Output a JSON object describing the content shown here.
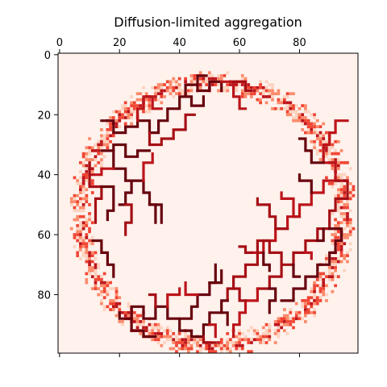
{
  "chart_data": {
    "type": "heatmap",
    "title": "Diffusion-limited aggregation",
    "xlabel": "",
    "ylabel": "",
    "grid_size": 100,
    "xlim": [
      0,
      99
    ],
    "ylim": [
      99,
      0
    ],
    "x_ticks": [
      0,
      20,
      40,
      60,
      80
    ],
    "y_ticks": [
      0,
      20,
      40,
      60,
      80
    ],
    "x_tick_labels": [
      "0",
      "20",
      "40",
      "60",
      "80"
    ],
    "y_tick_labels": [
      "0",
      "20",
      "40",
      "60",
      "80"
    ],
    "x_ticks_position": "top",
    "bottom_ticks_unlabeled": true,
    "colormap": "Reds",
    "background_color": "#fff1ec",
    "color_stops": [
      "#fff5f0",
      "#fdd2bf",
      "#fc8a6a",
      "#f14432",
      "#bc141a",
      "#67000d"
    ],
    "description_of_values": "walker visit density / aggregate mass",
    "ring": {
      "center": [
        51,
        53
      ],
      "radius": 44
    },
    "aggregate_paths": [
      [
        [
          14,
          22
        ],
        [
          18,
          22
        ],
        [
          18,
          26
        ],
        [
          22,
          26
        ],
        [
          22,
          24
        ],
        [
          26,
          24
        ],
        [
          26,
          22
        ],
        [
          30,
          22
        ],
        [
          30,
          26
        ],
        [
          33,
          26
        ],
        [
          33,
          22
        ],
        [
          36,
          22
        ],
        [
          36,
          18
        ],
        [
          40,
          18
        ],
        [
          40,
          14
        ],
        [
          42,
          14
        ],
        [
          42,
          10
        ],
        [
          46,
          10
        ],
        [
          46,
          12
        ],
        [
          50,
          12
        ],
        [
          50,
          9
        ],
        [
          54,
          9
        ],
        [
          54,
          12
        ]
      ],
      [
        [
          26,
          22
        ],
        [
          26,
          18
        ],
        [
          28,
          18
        ],
        [
          28,
          14
        ],
        [
          31,
          14
        ],
        [
          31,
          18
        ],
        [
          34,
          18
        ]
      ],
      [
        [
          30,
          26
        ],
        [
          30,
          30
        ],
        [
          34,
          30
        ],
        [
          34,
          28
        ],
        [
          38,
          28
        ],
        [
          38,
          25
        ],
        [
          42,
          25
        ],
        [
          42,
          20
        ],
        [
          45,
          20
        ]
      ],
      [
        [
          42,
          14
        ],
        [
          44,
          14
        ],
        [
          44,
          17
        ],
        [
          48,
          17
        ],
        [
          48,
          14
        ]
      ],
      [
        [
          46,
          10
        ],
        [
          46,
          7
        ],
        [
          49,
          7
        ]
      ],
      [
        [
          54,
          9
        ],
        [
          58,
          9
        ],
        [
          58,
          14
        ],
        [
          60,
          14
        ],
        [
          60,
          18
        ],
        [
          62,
          18
        ]
      ],
      [
        [
          58,
          9
        ],
        [
          62,
          9
        ],
        [
          62,
          12
        ],
        [
          64,
          12
        ]
      ],
      [
        [
          14,
          32
        ],
        [
          18,
          32
        ],
        [
          18,
          30
        ],
        [
          22,
          30
        ],
        [
          22,
          34
        ],
        [
          26,
          34
        ],
        [
          26,
          32
        ],
        [
          30,
          32
        ]
      ],
      [
        [
          18,
          32
        ],
        [
          18,
          38
        ],
        [
          22,
          38
        ],
        [
          22,
          42
        ],
        [
          24,
          42
        ],
        [
          24,
          46
        ],
        [
          22,
          46
        ],
        [
          22,
          50
        ],
        [
          20,
          50
        ]
      ],
      [
        [
          10,
          40
        ],
        [
          14,
          40
        ],
        [
          14,
          38
        ],
        [
          18,
          38
        ]
      ],
      [
        [
          10,
          36
        ],
        [
          10,
          44
        ],
        [
          14,
          44
        ],
        [
          14,
          48
        ],
        [
          12,
          48
        ],
        [
          12,
          56
        ]
      ],
      [
        [
          14,
          44
        ],
        [
          18,
          44
        ],
        [
          18,
          52
        ],
        [
          16,
          52
        ],
        [
          16,
          55
        ]
      ],
      [
        [
          24,
          42
        ],
        [
          28,
          42
        ],
        [
          28,
          46
        ],
        [
          30,
          46
        ],
        [
          30,
          50
        ],
        [
          32,
          50
        ],
        [
          32,
          56
        ]
      ],
      [
        [
          28,
          42
        ],
        [
          28,
          36
        ],
        [
          31,
          36
        ],
        [
          31,
          33
        ]
      ],
      [
        [
          22,
          50
        ],
        [
          24,
          50
        ],
        [
          24,
          56
        ],
        [
          22,
          56
        ],
        [
          22,
          60
        ]
      ],
      [
        [
          30,
          50
        ],
        [
          34,
          50
        ],
        [
          34,
          56
        ]
      ],
      [
        [
          11,
          62
        ],
        [
          14,
          62
        ],
        [
          14,
          66
        ],
        [
          16,
          66
        ],
        [
          16,
          70
        ],
        [
          18,
          70
        ],
        [
          18,
          74
        ]
      ],
      [
        [
          96,
          22
        ],
        [
          92,
          22
        ],
        [
          92,
          26
        ],
        [
          90,
          26
        ],
        [
          90,
          30
        ],
        [
          88,
          30
        ],
        [
          88,
          36
        ],
        [
          92,
          36
        ],
        [
          92,
          42
        ],
        [
          88,
          42
        ],
        [
          88,
          46
        ],
        [
          84,
          46
        ],
        [
          84,
          50
        ],
        [
          80,
          50
        ],
        [
          80,
          54
        ],
        [
          76,
          54
        ],
        [
          76,
          58
        ],
        [
          72,
          58
        ],
        [
          72,
          62
        ],
        [
          68,
          62
        ],
        [
          68,
          66
        ],
        [
          64,
          66
        ]
      ],
      [
        [
          92,
          42
        ],
        [
          96,
          42
        ],
        [
          96,
          48
        ],
        [
          92,
          48
        ],
        [
          92,
          52
        ],
        [
          90,
          52
        ],
        [
          90,
          58
        ],
        [
          86,
          58
        ],
        [
          86,
          62
        ],
        [
          82,
          62
        ],
        [
          82,
          66
        ],
        [
          78,
          66
        ],
        [
          78,
          70
        ],
        [
          74,
          70
        ],
        [
          74,
          74
        ],
        [
          70,
          74
        ],
        [
          70,
          78
        ],
        [
          66,
          78
        ]
      ],
      [
        [
          88,
          36
        ],
        [
          84,
          36
        ],
        [
          84,
          32
        ],
        [
          82,
          32
        ],
        [
          82,
          28
        ],
        [
          80,
          28
        ]
      ],
      [
        [
          84,
          46
        ],
        [
          84,
          42
        ],
        [
          80,
          42
        ],
        [
          80,
          40
        ]
      ],
      [
        [
          80,
          54
        ],
        [
          78,
          54
        ],
        [
          78,
          48
        ],
        [
          74,
          48
        ],
        [
          74,
          46
        ]
      ],
      [
        [
          76,
          58
        ],
        [
          72,
          58
        ],
        [
          72,
          54
        ],
        [
          70,
          54
        ],
        [
          70,
          50
        ],
        [
          66,
          50
        ],
        [
          66,
          48
        ]
      ],
      [
        [
          90,
          58
        ],
        [
          94,
          58
        ],
        [
          94,
          62
        ],
        [
          92,
          62
        ],
        [
          92,
          66
        ],
        [
          90,
          66
        ],
        [
          90,
          70
        ],
        [
          86,
          70
        ],
        [
          86,
          74
        ],
        [
          82,
          74
        ],
        [
          82,
          78
        ],
        [
          78,
          78
        ],
        [
          78,
          82
        ],
        [
          74,
          82
        ]
      ],
      [
        [
          86,
          62
        ],
        [
          88,
          62
        ],
        [
          88,
          58
        ]
      ],
      [
        [
          82,
          66
        ],
        [
          84,
          66
        ],
        [
          84,
          68
        ]
      ],
      [
        [
          74,
          70
        ],
        [
          74,
          66
        ],
        [
          70,
          66
        ],
        [
          70,
          62
        ],
        [
          66,
          62
        ],
        [
          66,
          70
        ],
        [
          62,
          70
        ],
        [
          62,
          74
        ],
        [
          58,
          74
        ],
        [
          58,
          78
        ],
        [
          56,
          78
        ],
        [
          56,
          82
        ]
      ],
      [
        [
          78,
          70
        ],
        [
          78,
          74
        ],
        [
          80,
          74
        ]
      ],
      [
        [
          70,
          78
        ],
        [
          72,
          78
        ],
        [
          72,
          82
        ],
        [
          70,
          82
        ],
        [
          70,
          86
        ]
      ],
      [
        [
          66,
          78
        ],
        [
          66,
          82
        ],
        [
          62,
          82
        ],
        [
          62,
          86
        ],
        [
          60,
          86
        ],
        [
          60,
          90
        ],
        [
          58,
          90
        ],
        [
          58,
          94
        ]
      ],
      [
        [
          62,
          82
        ],
        [
          60,
          82
        ],
        [
          60,
          78
        ],
        [
          58,
          78
        ]
      ],
      [
        [
          56,
          82
        ],
        [
          54,
          82
        ],
        [
          54,
          86
        ],
        [
          50,
          86
        ],
        [
          50,
          90
        ],
        [
          48,
          90
        ],
        [
          48,
          94
        ],
        [
          44,
          94
        ],
        [
          44,
          92
        ]
      ],
      [
        [
          54,
          86
        ],
        [
          56,
          86
        ],
        [
          56,
          90
        ]
      ],
      [
        [
          50,
          90
        ],
        [
          52,
          90
        ],
        [
          52,
          94
        ]
      ],
      [
        [
          48,
          94
        ],
        [
          48,
          96
        ],
        [
          52,
          96
        ]
      ],
      [
        [
          44,
          92
        ],
        [
          40,
          92
        ],
        [
          40,
          88
        ],
        [
          36,
          88
        ],
        [
          36,
          84
        ],
        [
          32,
          84
        ],
        [
          32,
          88
        ],
        [
          28,
          88
        ],
        [
          28,
          84
        ],
        [
          24,
          84
        ],
        [
          24,
          88
        ],
        [
          20,
          88
        ],
        [
          20,
          86
        ]
      ],
      [
        [
          40,
          88
        ],
        [
          44,
          88
        ],
        [
          44,
          84
        ],
        [
          46,
          84
        ],
        [
          46,
          80
        ],
        [
          50,
          80
        ],
        [
          50,
          76
        ],
        [
          54,
          76
        ],
        [
          54,
          72
        ]
      ],
      [
        [
          36,
          84
        ],
        [
          36,
          80
        ],
        [
          40,
          80
        ],
        [
          40,
          78
        ]
      ],
      [
        [
          32,
          84
        ],
        [
          32,
          80
        ],
        [
          30,
          80
        ]
      ],
      [
        [
          24,
          88
        ],
        [
          24,
          92
        ],
        [
          28,
          92
        ],
        [
          28,
          94
        ],
        [
          32,
          94
        ]
      ],
      [
        [
          50,
          76
        ],
        [
          52,
          76
        ],
        [
          52,
          70
        ]
      ],
      [
        [
          46,
          80
        ],
        [
          42,
          80
        ],
        [
          42,
          76
        ]
      ],
      [
        [
          64,
          66
        ],
        [
          62,
          66
        ],
        [
          62,
          64
        ],
        [
          60,
          64
        ]
      ],
      [
        [
          68,
          66
        ],
        [
          68,
          70
        ],
        [
          70,
          70
        ],
        [
          70,
          72
        ]
      ]
    ]
  }
}
